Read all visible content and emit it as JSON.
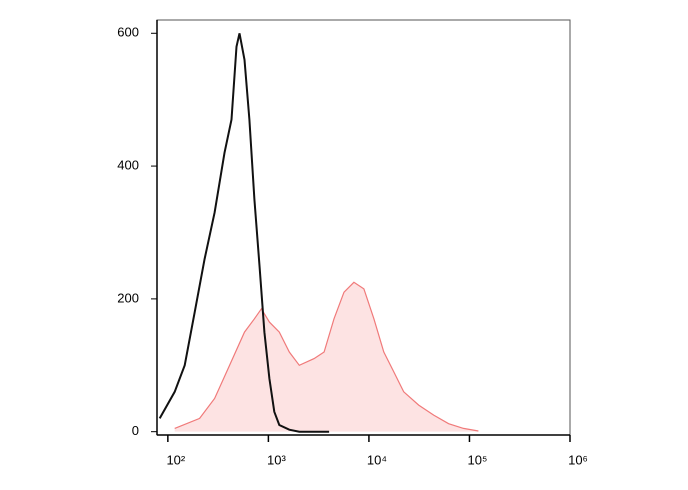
{
  "chart_data": {
    "type": "area",
    "xscale": "log",
    "xlim": [
      78,
      1000000
    ],
    "ylim": [
      -5,
      620
    ],
    "xticks": [
      {
        "value": 100,
        "label": "10²"
      },
      {
        "value": 1000,
        "label": "10³"
      },
      {
        "value": 10000,
        "label": "10⁴"
      },
      {
        "value": 100000,
        "label": "10⁵"
      },
      {
        "value": 1000000,
        "label": "10⁶"
      }
    ],
    "yticks": [
      0,
      200,
      400,
      600
    ],
    "series": [
      {
        "color": "#f07a7a",
        "fill": "#fde3e3",
        "x": [
          117,
          207,
          292,
          411,
          578,
          726,
          853,
          1023,
          1285,
          1614,
          2028,
          2851,
          3581,
          4498,
          5650,
          7096,
          8913,
          11195,
          14062,
          17663,
          22186,
          31267,
          44066,
          62008,
          87290,
          122800
        ],
        "values": [
          5,
          20,
          50,
          100,
          150,
          170,
          185,
          165,
          150,
          120,
          100,
          110,
          120,
          170,
          210,
          225,
          215,
          170,
          120,
          90,
          60,
          40,
          25,
          12,
          5,
          1
        ]
      },
      {
        "color": "#111111",
        "fill": "none",
        "x": [
          83,
          117,
          147,
          185,
          232,
          292,
          366,
          430,
          482,
          516,
          578,
          648,
          726,
          815,
          912,
          1023,
          1146,
          1285,
          1614,
          2028,
          4018
        ],
        "values": [
          20,
          60,
          100,
          180,
          260,
          330,
          420,
          470,
          580,
          600,
          560,
          470,
          350,
          250,
          150,
          80,
          30,
          10,
          3,
          0,
          0
        ]
      }
    ]
  }
}
